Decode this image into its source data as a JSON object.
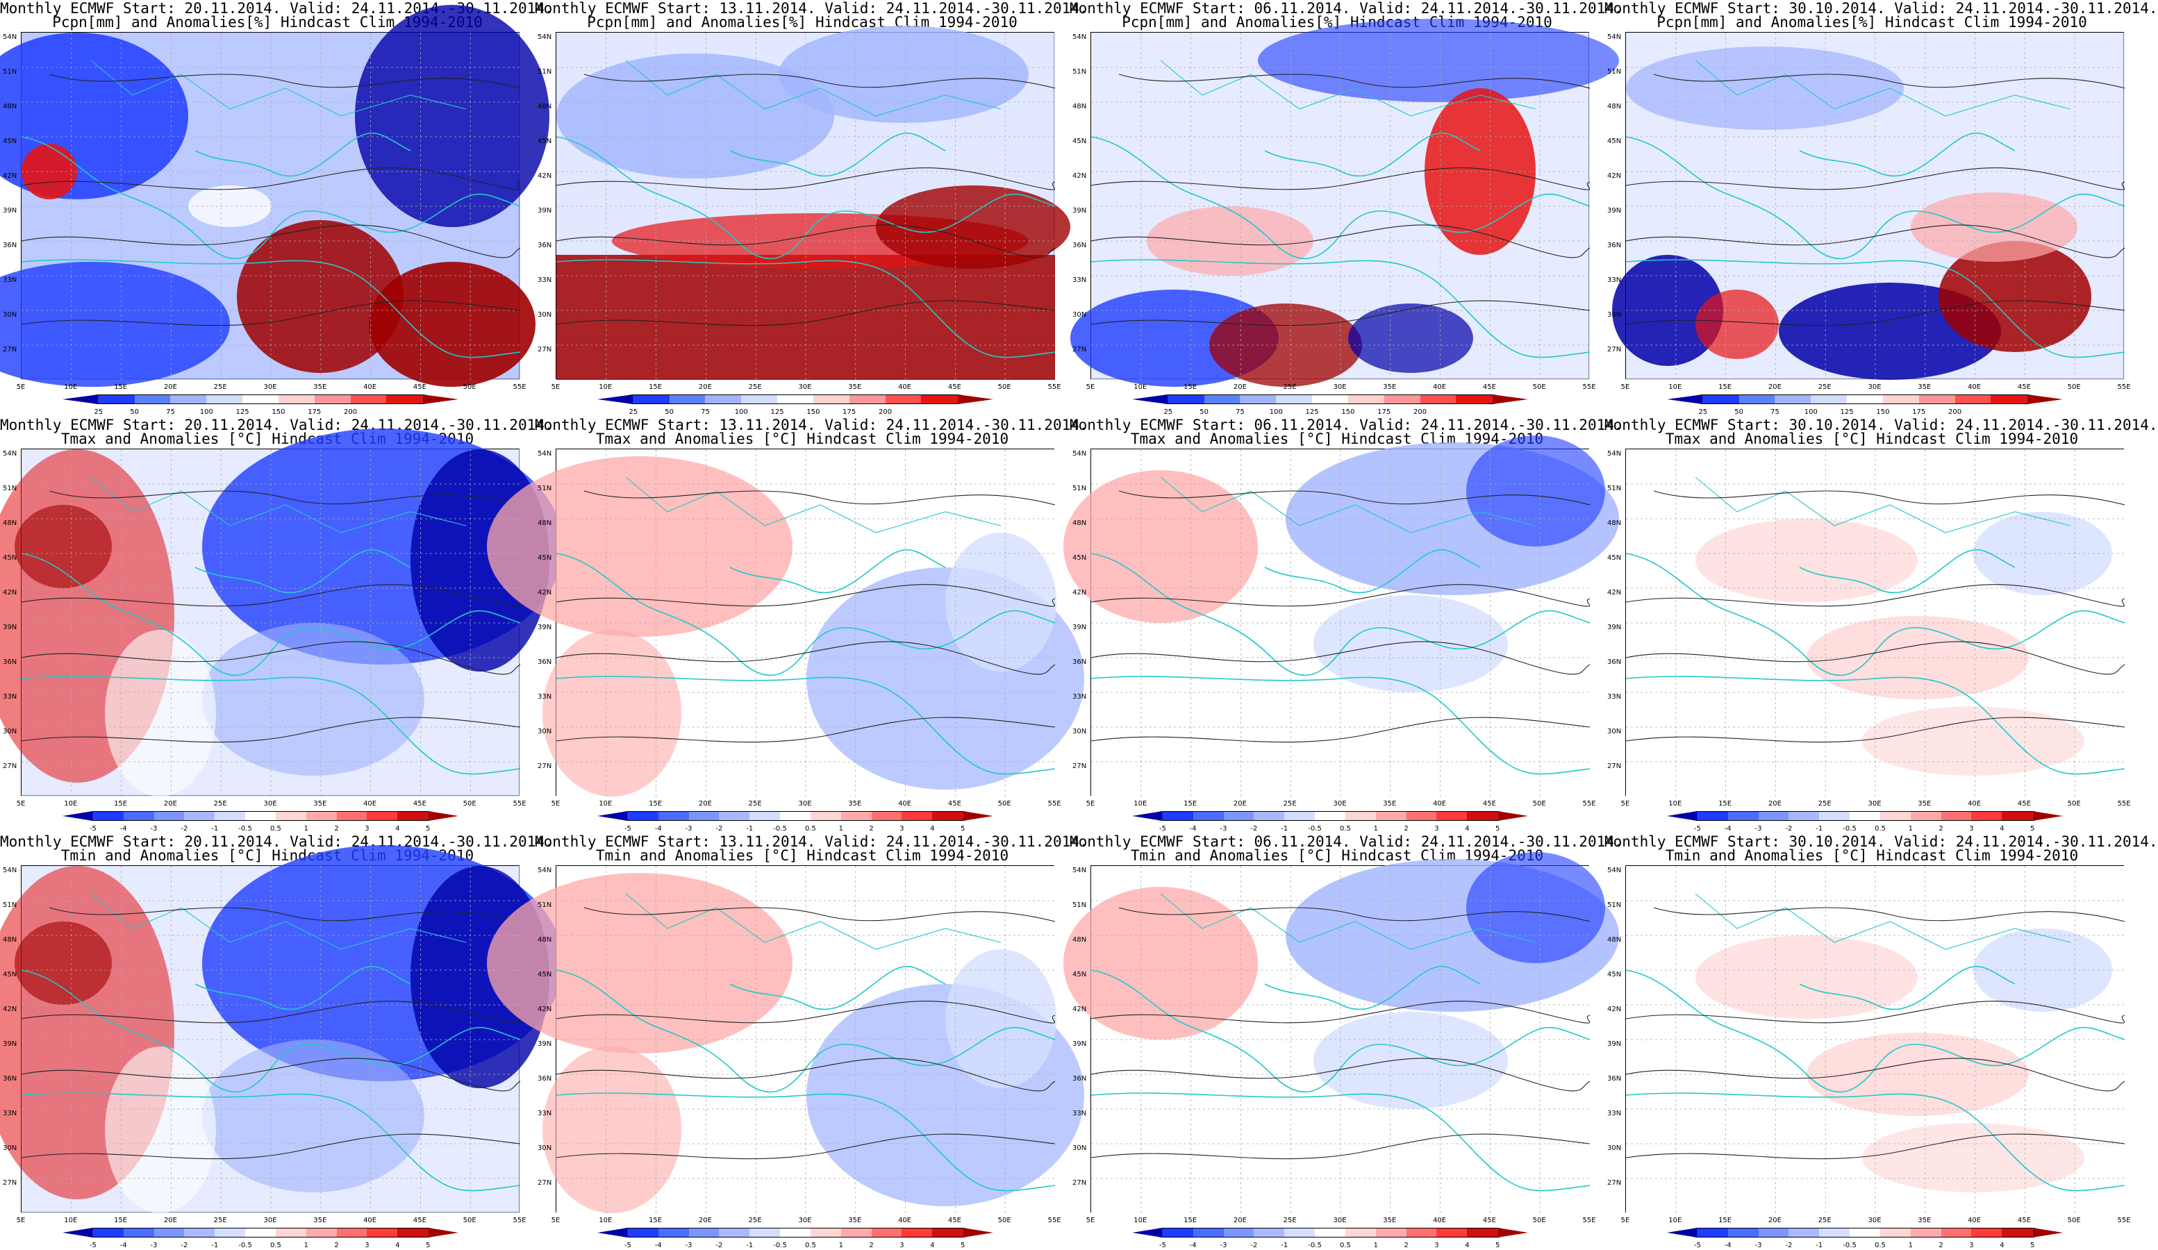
{
  "titles": {
    "monthly": "Monthly ECMWF",
    "valid": "Valid: 24.11.2014.-30.11.2014.",
    "starts": [
      "20.11.2014.",
      "13.11.2014.",
      "06.11.2014.",
      "30.10.2014."
    ],
    "rows": [
      "Pcpn[mm] and Anomalies[%] Hindcast Clim 1994-2010",
      "Tmax and Anomalies [°C] Hindcast Clim 1994-2010",
      "Tmin and Anomalies [°C] Hindcast Clim 1994-2010"
    ]
  },
  "axes": {
    "lon_labels": [
      "5E",
      "10E",
      "15E",
      "20E",
      "25E",
      "30E",
      "35E",
      "40E",
      "45E",
      "50E",
      "55E"
    ],
    "lat_labels": [
      "54N",
      "51N",
      "48N",
      "45N",
      "42N",
      "39N",
      "36N",
      "33N",
      "30N",
      "27N"
    ]
  },
  "colorbars": {
    "precip": {
      "labels": [
        "25",
        "50",
        "75",
        "100",
        "125",
        "150",
        "175",
        "200"
      ],
      "colors": [
        "#0000a8",
        "#1e3cff",
        "#5a82ff",
        "#a0b4ff",
        "#d2dcff",
        "#ffffff",
        "#ffd2d2",
        "#ff9696",
        "#ff5050",
        "#e61414",
        "#a00000"
      ]
    },
    "temp": {
      "labels": [
        "-5",
        "-4",
        "-3",
        "-2",
        "-1",
        "-0.5",
        "0.5",
        "1",
        "2",
        "3",
        "4",
        "5"
      ],
      "colors": [
        "#0000a8",
        "#1e3cff",
        "#4a6cff",
        "#7c96ff",
        "#aab9ff",
        "#d6deff",
        "#ffffff",
        "#ffd6d6",
        "#ffaaaa",
        "#ff7070",
        "#ff3a3a",
        "#d01010",
        "#a00000"
      ]
    }
  },
  "panel_styles": [
    [
      "precip-strong",
      "precip-band",
      "precip-mixed",
      "precip-east"
    ],
    [
      "cold-strong",
      "warm-west",
      "cold-north",
      "neutral"
    ],
    [
      "cold-strong",
      "warm-west",
      "cold-north",
      "neutral"
    ]
  ]
}
